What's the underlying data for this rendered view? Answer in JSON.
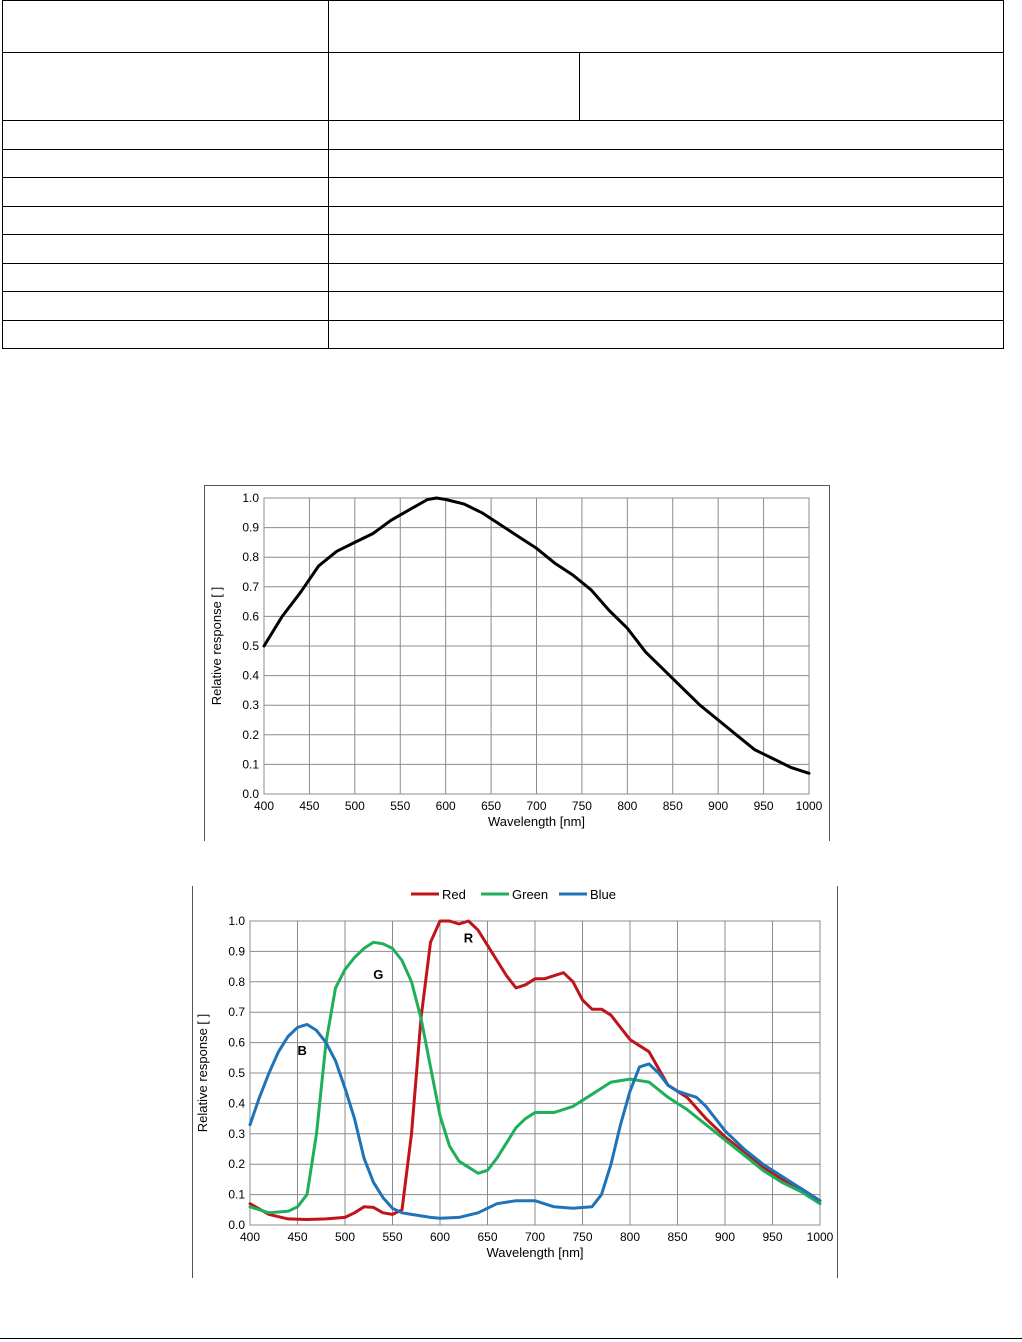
{
  "spec_table": {
    "rows": [
      {
        "cells": [
          "",
          ""
        ]
      },
      {
        "cells": [
          "",
          "",
          ""
        ]
      },
      {
        "cells": [
          "",
          ""
        ]
      },
      {
        "cells": [
          "",
          ""
        ]
      },
      {
        "cells": [
          "",
          ""
        ]
      },
      {
        "cells": [
          "",
          ""
        ]
      },
      {
        "cells": [
          "",
          ""
        ]
      },
      {
        "cells": [
          "",
          ""
        ]
      },
      {
        "cells": [
          "",
          ""
        ]
      },
      {
        "cells": [
          "",
          ""
        ]
      }
    ]
  },
  "chart_data": [
    {
      "type": "line",
      "title": "",
      "xlabel": "Wavelength [nm]",
      "ylabel": "Relative response [ ]",
      "xlim": [
        400,
        1000
      ],
      "ylim": [
        0,
        1.0
      ],
      "xticks": [
        "400",
        "450",
        "500",
        "550",
        "600",
        "650",
        "700",
        "750",
        "800",
        "850",
        "900",
        "950",
        "1000"
      ],
      "yticks": [
        "0.0",
        "0.1",
        "0.2",
        "0.3",
        "0.4",
        "0.5",
        "0.6",
        "0.7",
        "0.8",
        "0.9",
        "1.0"
      ],
      "grid": true,
      "legend": "none",
      "series": [
        {
          "color": "#000000",
          "x": [
            400,
            420,
            440,
            460,
            480,
            500,
            520,
            540,
            560,
            580,
            590,
            600,
            620,
            640,
            660,
            680,
            700,
            720,
            740,
            760,
            780,
            800,
            820,
            840,
            860,
            880,
            900,
            920,
            940,
            960,
            980,
            1000
          ],
          "y": [
            0.5,
            0.6,
            0.68,
            0.77,
            0.82,
            0.85,
            0.88,
            0.925,
            0.96,
            0.995,
            1.0,
            0.995,
            0.98,
            0.95,
            0.91,
            0.87,
            0.83,
            0.78,
            0.74,
            0.69,
            0.62,
            0.56,
            0.48,
            0.42,
            0.36,
            0.3,
            0.25,
            0.2,
            0.15,
            0.12,
            0.09,
            0.07
          ]
        }
      ]
    },
    {
      "type": "line",
      "title": "",
      "xlabel": "Wavelength [nm]",
      "ylabel": "Relative response [ ]",
      "xlim": [
        400,
        1000
      ],
      "ylim": [
        0,
        1.0
      ],
      "xticks": [
        "400",
        "450",
        "500",
        "550",
        "600",
        "650",
        "700",
        "750",
        "800",
        "850",
        "900",
        "950",
        "1000"
      ],
      "yticks": [
        "0.0",
        "0.1",
        "0.2",
        "0.3",
        "0.4",
        "0.5",
        "0.6",
        "0.7",
        "0.8",
        "0.9",
        "1.0"
      ],
      "grid": true,
      "legend": "top-center",
      "series": [
        {
          "name": "Red",
          "label": "R",
          "color": "#c0141b",
          "x": [
            400,
            420,
            440,
            460,
            480,
            500,
            510,
            520,
            530,
            540,
            550,
            560,
            570,
            580,
            590,
            600,
            610,
            620,
            630,
            640,
            650,
            660,
            670,
            680,
            690,
            700,
            710,
            720,
            730,
            740,
            750,
            760,
            770,
            780,
            790,
            800,
            820,
            840,
            860,
            880,
            900,
            920,
            940,
            960,
            980,
            1000
          ],
          "y": [
            0.07,
            0.035,
            0.02,
            0.018,
            0.02,
            0.025,
            0.04,
            0.06,
            0.058,
            0.04,
            0.035,
            0.05,
            0.3,
            0.68,
            0.93,
            1.0,
            1.0,
            0.99,
            1.0,
            0.97,
            0.92,
            0.87,
            0.82,
            0.78,
            0.79,
            0.81,
            0.81,
            0.82,
            0.83,
            0.8,
            0.74,
            0.71,
            0.71,
            0.69,
            0.65,
            0.61,
            0.57,
            0.46,
            0.42,
            0.35,
            0.29,
            0.24,
            0.19,
            0.15,
            0.12,
            0.08
          ]
        },
        {
          "name": "Green",
          "label": "G",
          "color": "#1faf5a",
          "x": [
            400,
            420,
            440,
            450,
            460,
            470,
            480,
            490,
            500,
            510,
            520,
            530,
            540,
            550,
            560,
            570,
            580,
            590,
            600,
            610,
            620,
            630,
            640,
            650,
            660,
            670,
            680,
            690,
            700,
            720,
            740,
            760,
            780,
            800,
            820,
            840,
            860,
            880,
            900,
            920,
            940,
            960,
            980,
            1000
          ],
          "y": [
            0.06,
            0.04,
            0.045,
            0.06,
            0.1,
            0.3,
            0.6,
            0.78,
            0.84,
            0.88,
            0.91,
            0.93,
            0.925,
            0.91,
            0.87,
            0.8,
            0.68,
            0.52,
            0.36,
            0.26,
            0.21,
            0.19,
            0.17,
            0.18,
            0.22,
            0.27,
            0.32,
            0.35,
            0.37,
            0.37,
            0.39,
            0.43,
            0.47,
            0.48,
            0.47,
            0.42,
            0.38,
            0.33,
            0.28,
            0.23,
            0.18,
            0.14,
            0.11,
            0.07
          ]
        },
        {
          "name": "Blue",
          "label": "B",
          "color": "#1f73b8",
          "x": [
            400,
            410,
            420,
            430,
            440,
            450,
            460,
            470,
            480,
            490,
            500,
            510,
            520,
            530,
            540,
            550,
            560,
            570,
            580,
            590,
            600,
            620,
            640,
            660,
            680,
            700,
            720,
            740,
            760,
            770,
            780,
            790,
            800,
            810,
            820,
            830,
            840,
            850,
            860,
            870,
            880,
            900,
            920,
            940,
            960,
            980,
            1000
          ],
          "y": [
            0.33,
            0.42,
            0.5,
            0.57,
            0.62,
            0.65,
            0.66,
            0.64,
            0.6,
            0.54,
            0.45,
            0.35,
            0.22,
            0.14,
            0.09,
            0.055,
            0.04,
            0.035,
            0.03,
            0.025,
            0.022,
            0.025,
            0.04,
            0.07,
            0.08,
            0.08,
            0.06,
            0.055,
            0.06,
            0.1,
            0.2,
            0.33,
            0.44,
            0.52,
            0.53,
            0.5,
            0.46,
            0.44,
            0.43,
            0.42,
            0.39,
            0.31,
            0.25,
            0.2,
            0.16,
            0.12,
            0.08
          ]
        }
      ]
    }
  ]
}
